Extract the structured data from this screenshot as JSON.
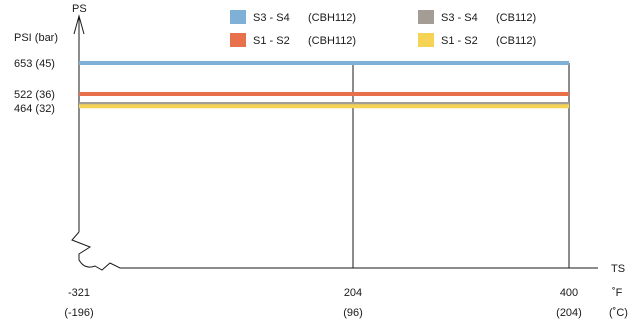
{
  "chart_data": {
    "type": "line",
    "y_axis": {
      "label": "PS",
      "unit_label": "PSI (bar)",
      "ticks": [
        {
          "value": 653,
          "label": "653 (45)"
        },
        {
          "value": 522,
          "label": "522 (36)"
        },
        {
          "value": 464,
          "label": "464 (32)"
        }
      ],
      "axis_break": true
    },
    "x_axis": {
      "label": "TS",
      "unit_top": "˚F",
      "unit_bottom": "(˚C)",
      "xlim": [
        -321,
        400
      ],
      "ticks": [
        {
          "value": -321,
          "top": "-321",
          "bottom": "(-196)"
        },
        {
          "value": 204,
          "top": "204",
          "bottom": "(96)"
        },
        {
          "value": 400,
          "top": "400",
          "bottom": "(204)"
        }
      ]
    },
    "series": [
      {
        "name": "S3 - S4",
        "code": "(CBH112)",
        "color": "#7fb0d6",
        "x": [
          -321,
          400
        ],
        "y": [
          653,
          653
        ]
      },
      {
        "name": "S1 - S2",
        "code": "(CBH112)",
        "color": "#e8704a",
        "x": [
          -321,
          400
        ],
        "y": [
          522,
          522
        ]
      },
      {
        "name": "S3 - S4",
        "code": "(CB112)",
        "color": "#a39d96",
        "x": [
          -321,
          400
        ],
        "y": [
          480,
          480
        ]
      },
      {
        "name": "S1 - S2",
        "code": "(CB112)",
        "color": "#f5d355",
        "x": [
          -321,
          400
        ],
        "y": [
          470,
          470
        ]
      }
    ],
    "grid": "vertical lines at 204 and 400",
    "legend_position": "top"
  }
}
